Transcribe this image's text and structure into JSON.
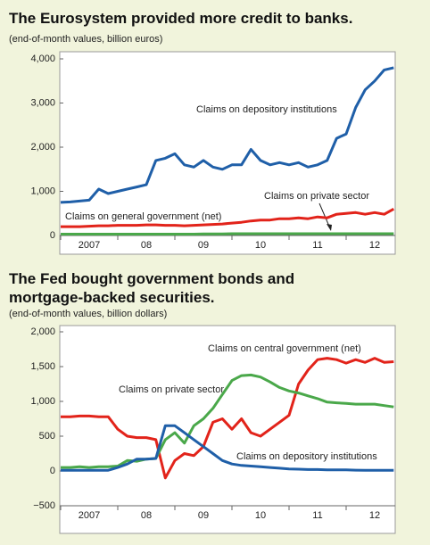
{
  "chart_data": [
    {
      "type": "line",
      "title": "The Eurosystem provided more credit to banks.",
      "subtitle": "(end-of-month values, billion euros)",
      "categories": [
        null,
        null,
        null,
        "2007",
        null,
        null,
        null,
        null,
        null,
        "08",
        null,
        null,
        null,
        null,
        null,
        "09",
        null,
        null,
        null,
        null,
        null,
        "10",
        null,
        null,
        null,
        null,
        null,
        "11",
        null,
        null,
        null,
        null,
        null,
        "12",
        null,
        null
      ],
      "series": [
        {
          "name": "Claims on depository institutions",
          "color": "#1f5fa8",
          "values": [
            750,
            760,
            780,
            800,
            1050,
            950,
            1000,
            1050,
            1100,
            1150,
            1700,
            1750,
            1850,
            1600,
            1550,
            1700,
            1550,
            1500,
            1600,
            1600,
            1950,
            1700,
            1600,
            1650,
            1600,
            1650,
            1550,
            1600,
            1700,
            2200,
            2300,
            2900,
            3300,
            3500,
            3750,
            3800
          ]
        },
        {
          "name": "Claims on private sector",
          "color": "#e2231a",
          "values": [
            200,
            200,
            200,
            210,
            220,
            220,
            230,
            230,
            230,
            240,
            240,
            230,
            230,
            220,
            230,
            240,
            250,
            260,
            280,
            300,
            330,
            350,
            350,
            380,
            380,
            400,
            380,
            420,
            400,
            480,
            500,
            520,
            480,
            520,
            480,
            600
          ]
        },
        {
          "name": "Claims on general government (net)",
          "color": "#4aa84a",
          "values": [
            30,
            30,
            30,
            30,
            30,
            30,
            30,
            30,
            30,
            30,
            30,
            30,
            30,
            30,
            30,
            35,
            35,
            35,
            40,
            40,
            40,
            40,
            40,
            40,
            40,
            40,
            40,
            40,
            40,
            40,
            40,
            40,
            40,
            40,
            40,
            40
          ]
        }
      ],
      "ylim": [
        0,
        4000
      ],
      "yticks": [
        0,
        {
          "value": 1000,
          "label": "1,000"
        },
        {
          "value": 2000,
          "label": "2,000"
        },
        {
          "value": 3000,
          "label": "3,000"
        },
        {
          "value": 4000,
          "label": "4,000"
        }
      ]
    },
    {
      "type": "line",
      "title": "The Fed bought government bonds and mortgage-backed securities.",
      "subtitle": "(end-of-month values, billion dollars)",
      "categories": [
        null,
        null,
        null,
        "2007",
        null,
        null,
        null,
        null,
        null,
        "08",
        null,
        null,
        null,
        null,
        null,
        "09",
        null,
        null,
        null,
        null,
        null,
        "10",
        null,
        null,
        null,
        null,
        null,
        "11",
        null,
        null,
        null,
        null,
        null,
        "12",
        null,
        null
      ],
      "series": [
        {
          "name": "Claims on central government (net)",
          "color": "#e2231a",
          "values": [
            780,
            780,
            790,
            790,
            780,
            780,
            600,
            500,
            480,
            480,
            450,
            -100,
            150,
            250,
            220,
            350,
            700,
            750,
            600,
            750,
            550,
            500,
            600,
            700,
            800,
            1250,
            1450,
            1600,
            1620,
            1600,
            1550,
            1600,
            1560,
            1620,
            1560,
            1570
          ]
        },
        {
          "name": "Claims on private sector",
          "color": "#4aa84a",
          "values": [
            50,
            50,
            60,
            50,
            60,
            60,
            70,
            150,
            140,
            170,
            180,
            450,
            550,
            400,
            650,
            750,
            900,
            1100,
            1300,
            1370,
            1380,
            1350,
            1280,
            1200,
            1150,
            1120,
            1080,
            1040,
            990,
            980,
            970,
            960,
            960,
            960,
            940,
            920
          ]
        },
        {
          "name": "Claims on depository institutions",
          "color": "#1f5fa8",
          "values": [
            10,
            10,
            10,
            10,
            10,
            10,
            50,
            100,
            170,
            170,
            180,
            650,
            650,
            550,
            450,
            350,
            250,
            150,
            100,
            80,
            70,
            60,
            50,
            40,
            30,
            25,
            20,
            20,
            15,
            15,
            15,
            12,
            10,
            10,
            10,
            10
          ]
        }
      ],
      "ylim": [
        -500,
        2000
      ],
      "yticks": [
        {
          "value": -500,
          "label": "−500"
        },
        0,
        500,
        {
          "value": 1000,
          "label": "1,000"
        },
        {
          "value": 1500,
          "label": "1,500"
        },
        {
          "value": 2000,
          "label": "2,000"
        }
      ]
    }
  ]
}
